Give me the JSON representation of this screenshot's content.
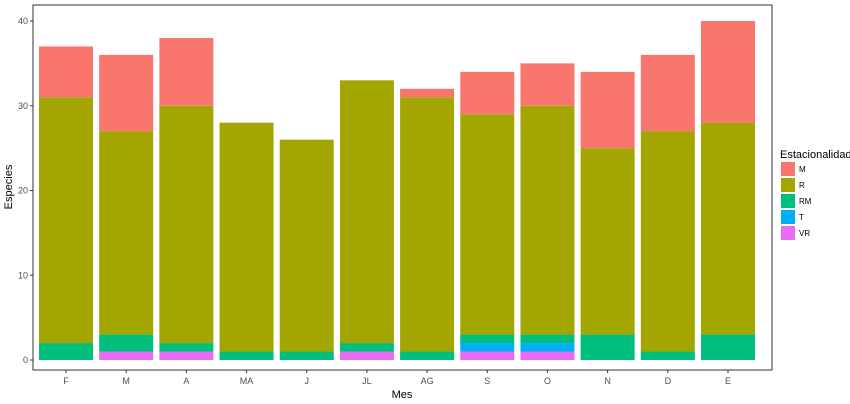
{
  "chart_data": {
    "type": "bar",
    "stacked": true,
    "xlabel": "Mes",
    "ylabel": "Especies",
    "categories": [
      "F",
      "M",
      "A",
      "MA",
      "J",
      "JL",
      "AG",
      "S",
      "O",
      "N",
      "D",
      "E"
    ],
    "ylim": [
      0,
      40
    ],
    "yticks": [
      0,
      10,
      20,
      30,
      40
    ],
    "grid": false,
    "legend": {
      "title": "Estacionalidad",
      "position": "right"
    },
    "series": [
      {
        "name": "VR",
        "color": "#E76BF3",
        "values": [
          0,
          1,
          1,
          0,
          0,
          1,
          0,
          1,
          1,
          0,
          0,
          0
        ]
      },
      {
        "name": "T",
        "color": "#00B0F6",
        "values": [
          0,
          0,
          0,
          0,
          0,
          0,
          0,
          1,
          1,
          0,
          0,
          0
        ]
      },
      {
        "name": "RM",
        "color": "#00BF7D",
        "values": [
          2,
          2,
          1,
          1,
          1,
          1,
          1,
          1,
          1,
          3,
          1,
          3
        ]
      },
      {
        "name": "R",
        "color": "#A3A500",
        "values": [
          29,
          24,
          28,
          27,
          25,
          31,
          30,
          26,
          27,
          22,
          26,
          25
        ]
      },
      {
        "name": "M",
        "color": "#F8766D",
        "values": [
          6,
          9,
          8,
          0,
          0,
          0,
          1,
          5,
          5,
          9,
          9,
          12
        ]
      }
    ]
  }
}
